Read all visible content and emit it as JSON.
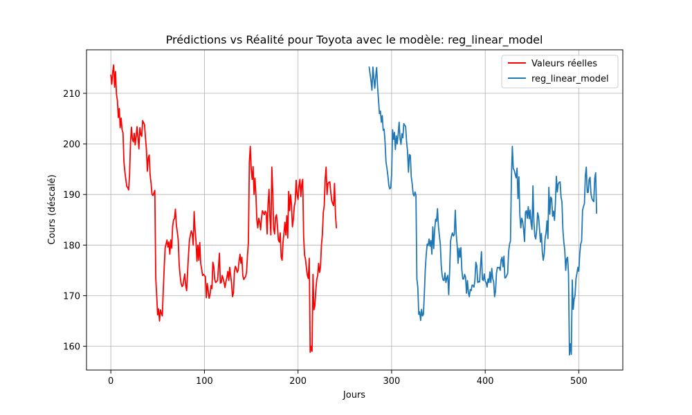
{
  "chart_data": {
    "type": "line",
    "title": "Prédictions vs Réalité pour Toyota avec le modèle: reg_linear_model",
    "xlabel": "Jours",
    "ylabel": "Cours (déscalé)",
    "xlim": [
      -26,
      547
    ],
    "ylim": [
      155.3,
      218.6
    ],
    "xticks": [
      0,
      100,
      200,
      300,
      400,
      500
    ],
    "yticks": [
      160,
      170,
      180,
      190,
      200,
      210
    ],
    "grid": true,
    "legend": "top-right",
    "series": [
      {
        "name": "Valeurs réelles",
        "color": "#ff0000",
        "x_start": 0,
        "values": [
          213.6,
          211.8,
          214.2,
          215.6,
          211.2,
          214.3,
          209.8,
          208.6,
          205.2,
          207.0,
          203.2,
          205.1,
          202.8,
          202.2,
          196.5,
          194.5,
          193.0,
          191.6,
          191.4,
          190.9,
          193.8,
          200.2,
          203.3,
          201.0,
          200.4,
          202.1,
          199.8,
          201.5,
          203.4,
          201.3,
          199.0,
          203.2,
          201.8,
          201.5,
          204.6,
          204.2,
          203.8,
          201.2,
          199.0,
          194.6,
          197.2,
          197.8,
          193.8,
          192.2,
          190.0,
          189.8,
          190.3,
          190.8,
          173.5,
          170.0,
          166.2,
          167.4,
          165.0,
          167.2,
          166.5,
          166.0,
          171.0,
          175.4,
          179.4,
          180.2,
          181.0,
          179.6,
          180.6,
          178.2,
          181.0,
          179.4,
          183.6,
          185.0,
          185.2,
          187.1,
          184.0,
          182.6,
          181.0,
          176.2,
          174.0,
          172.5,
          171.8,
          172.0,
          173.2,
          174.3,
          172.0,
          171.0,
          174.6,
          178.2,
          181.0,
          182.0,
          182.8,
          182.2,
          180.0,
          186.6,
          183.0,
          180.8,
          176.8,
          180.0,
          177.0,
          180.5,
          176.4,
          175.3,
          174.0,
          174.2,
          174.0,
          173.8,
          169.6,
          172.4,
          171.0,
          169.5,
          170.2,
          172.0,
          171.4,
          176.6,
          175.8,
          173.2,
          172.6,
          172.8,
          173.0,
          175.6,
          178.4,
          172.5,
          172.6,
          174.0,
          173.4,
          172.6,
          171.6,
          172.8,
          173.6,
          174.8,
          173.0,
          175.6,
          174.0,
          172.4,
          169.8,
          170.5,
          174.6,
          175.8,
          175.4,
          174.6,
          175.0,
          176.8,
          178.2,
          176.4,
          177.6,
          174.0,
          173.2,
          173.5,
          173.8,
          174.6,
          178.0,
          180.6,
          196.4,
          199.5,
          195.0,
          193.0,
          195.5,
          190.0,
          193.2,
          190.0,
          185.0,
          183.4,
          185.3,
          184.6,
          183.0,
          185.4,
          186.8,
          186.4,
          186.0,
          186.7,
          186.4,
          182.2,
          188.0,
          191.0,
          185.4,
          182.0,
          195.4,
          190.6,
          183.2,
          182.2,
          185.5,
          186.0,
          183.8,
          181.0,
          180.6,
          182.4,
          177.6,
          177.0,
          180.6,
          182.4,
          184.5,
          182.0,
          185.8,
          181.4,
          190.6,
          186.8,
          190.0,
          188.0,
          183.6,
          185.0,
          187.6,
          188.6,
          192.8,
          190.0,
          189.0,
          191.6,
          193.0,
          189.6,
          192.0,
          193.0,
          181.6,
          178.0,
          177.2,
          175.4,
          174.0,
          173.4,
          177.4,
          158.8,
          160.0,
          159.0,
          174.2,
          167.2,
          168.0,
          171.0,
          173.2,
          174.0,
          176.4,
          174.6,
          175.6,
          180.0,
          182.0,
          186.4,
          187.8,
          193.0,
          195.4,
          190.0,
          192.2,
          192.4,
          192.5,
          190.4,
          188.8,
          188.2,
          187.8,
          192.2,
          186.0,
          183.4
        ]
      },
      {
        "name": "reg_linear_model",
        "color": "#1f77b4",
        "x_start": 276,
        "values": [
          215.2,
          213.8,
          212.4,
          210.6,
          215.2,
          213.0,
          211.0,
          213.4,
          215.1,
          211.3,
          208.6,
          206.0,
          206.5,
          204.3,
          205.6,
          202.7,
          202.9,
          200.3,
          196.4,
          195.2,
          193.7,
          191.8,
          191.1,
          191.3,
          193.8,
          202.8,
          200.9,
          202.3,
          198.9,
          201.6,
          200.0,
          201.9,
          204.3,
          201.1,
          199.9,
          202.0,
          201.2,
          204.0,
          203.7,
          203.4,
          200.4,
          198.6,
          194.4,
          197.9,
          197.7,
          193.5,
          192.1,
          190.1,
          189.7,
          190.5,
          189.9,
          173.3,
          171.6,
          166.3,
          166.8,
          165.1,
          167.3,
          166.0,
          166.3,
          170.6,
          175.3,
          178.2,
          180.2,
          179.9,
          181.2,
          179.8,
          180.9,
          178.2,
          183.6,
          179.3,
          183.0,
          185.1,
          184.7,
          187.2,
          183.8,
          181.9,
          180.3,
          176.0,
          174.0,
          173.1,
          173.0,
          174.5,
          172.6,
          173.5,
          174.0,
          170.2,
          174.8,
          180.8,
          181.8,
          182.4,
          181.8,
          182.1,
          186.9,
          182.3,
          180.0,
          176.4,
          179.4,
          177.6,
          179.5,
          175.2,
          173.3,
          173.3,
          174.2,
          173.7,
          170.5,
          173.0,
          170.6,
          169.8,
          171.2,
          171.0,
          172.1,
          172.0,
          171.7,
          173.1,
          176.6,
          175.9,
          172.6,
          172.8,
          172.7,
          175.9,
          178.7,
          173.2,
          173.0,
          174.3,
          172.9,
          172.6,
          171.7,
          173.3,
          172.6,
          174.7,
          172.6,
          175.4,
          173.4,
          172.8,
          169.8,
          170.8,
          174.4,
          175.6,
          175.5,
          175.6,
          175.0,
          177.1,
          177.6,
          175.7,
          177.8,
          173.5,
          173.6,
          174.0,
          174.4,
          178.7,
          180.2,
          180.8,
          193.4,
          199.5,
          195.1,
          194.8,
          194.0,
          193.3,
          195.2,
          189.2,
          193.5,
          186.0,
          183.4,
          185.3,
          184.7,
          183.1,
          180.7,
          186.5,
          186.8,
          185.3,
          187.6,
          185.2,
          186.9,
          184.3,
          183.1,
          191.7,
          184.5,
          181.8,
          181.2,
          183.0,
          186.4,
          185.6,
          183.3,
          180.6,
          182.3,
          178.7,
          177.0,
          178.2,
          181.4,
          182.4,
          184.8,
          181.3,
          191.4,
          186.1,
          189.5,
          189.2,
          185.7,
          186.7,
          184.9,
          188.4,
          193.6,
          190.5,
          192.1,
          192.4,
          192.5,
          189.5,
          188.5,
          183.0,
          180.6,
          179.0,
          175.0,
          177.3,
          177.6,
          174.3,
          158.3,
          160.5,
          158.4,
          173.1,
          167.3,
          169.3,
          170.1,
          173.4,
          174.4,
          175.6,
          174.8,
          178.3,
          180.2,
          180.8,
          186.9,
          187.6,
          188.2,
          193.7,
          195.4,
          190.4,
          190.4,
          193.0,
          193.4,
          190.1,
          189.2,
          188.8,
          188.6,
          193.2,
          194.3,
          186.3
        ]
      }
    ]
  }
}
